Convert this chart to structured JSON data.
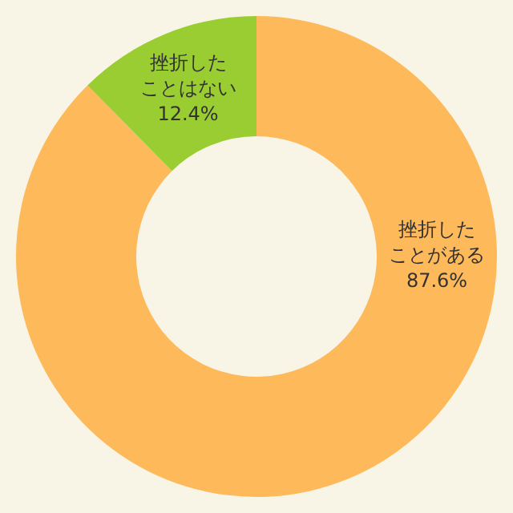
{
  "chart_data": {
    "type": "donut",
    "categories": [
      "挫折したことがある",
      "挫折したことはない"
    ],
    "values": [
      87.6,
      12.4
    ],
    "colors": [
      "#fdb95a",
      "#9acd32"
    ],
    "value_labels": [
      "87.6%",
      "12.4%"
    ],
    "legend": false
  }
}
